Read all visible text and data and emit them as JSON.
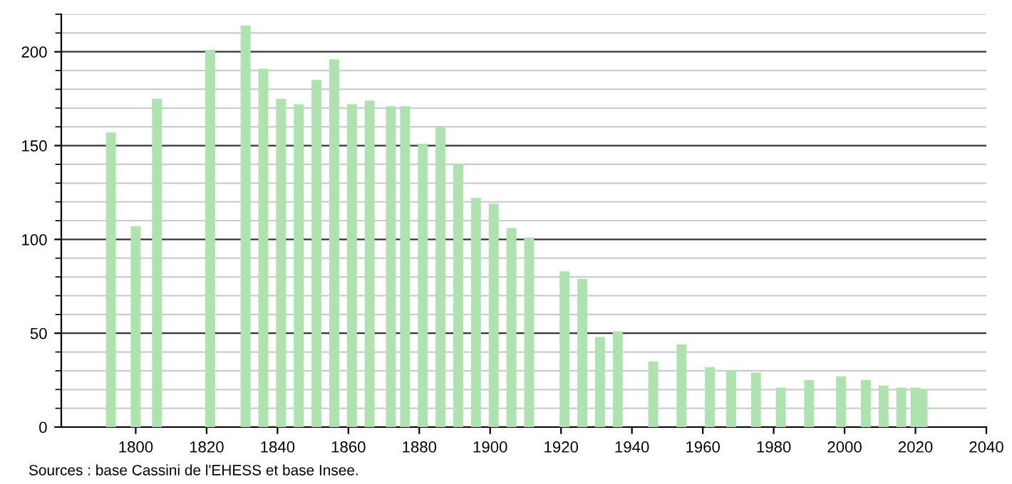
{
  "chart_data": {
    "type": "bar",
    "x": [
      1793,
      1800,
      1806,
      1821,
      1831,
      1836,
      1841,
      1846,
      1851,
      1856,
      1861,
      1866,
      1872,
      1876,
      1881,
      1886,
      1891,
      1896,
      1901,
      1906,
      1911,
      1921,
      1926,
      1931,
      1936,
      1946,
      1954,
      1962,
      1968,
      1975,
      1982,
      1990,
      1999,
      2006,
      2011,
      2016,
      2020,
      2022
    ],
    "values": [
      157,
      107,
      175,
      201,
      214,
      191,
      175,
      172,
      185,
      196,
      172,
      174,
      171,
      171,
      151,
      160,
      140,
      122,
      119,
      106,
      101,
      83,
      79,
      48,
      51,
      35,
      44,
      32,
      30,
      29,
      21,
      25,
      27,
      25,
      22,
      21,
      21,
      20
    ],
    "color": "#aee3b0",
    "xlim": [
      1779,
      2040
    ],
    "xticks": [
      1800,
      1820,
      1840,
      1860,
      1880,
      1900,
      1920,
      1940,
      1960,
      1980,
      2000,
      2020,
      2040
    ],
    "ylim": [
      0,
      220
    ],
    "yticks": [
      0,
      50,
      100,
      150,
      200
    ],
    "grid": "y",
    "annotations": [
      "Sources : base Cassini de l'EHESS et base Insee."
    ]
  }
}
